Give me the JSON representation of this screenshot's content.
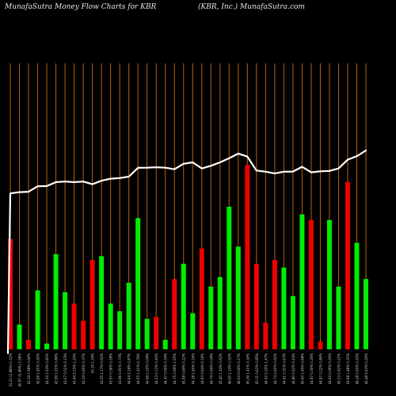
{
  "header": {
    "title_left": "MunafaSutra  Money Flow  Charts for KBR",
    "title_right": "(KBR, Inc.) MunafaSutra.com"
  },
  "colors": {
    "background": "#000000",
    "gridline": "#b8620a",
    "up_bar": "#00ee00",
    "down_bar": "#ee0000",
    "price_line": "#ffffff",
    "label": "#cccccc"
  },
  "chart_data": {
    "type": "bar",
    "title": "MunafaSutra  Money Flow  Charts for KBR",
    "grid": true,
    "bars": [
      {
        "label": "41.22 (2.98%) 0.32%",
        "value": 0.58,
        "direction": "down",
        "price": 0.79
      },
      {
        "label": "40.97 (0.46%) 2.58%",
        "value": 0.13,
        "direction": "up",
        "price": 0.796
      },
      {
        "label": "42.19 2.98% 0.00%",
        "value": 0.05,
        "direction": "down",
        "price": 0.798
      },
      {
        "label": "42.06 1.91% 0.50%",
        "value": 0.31,
        "direction": "up",
        "price": 0.825
      },
      {
        "label": "42.20 2.53% 0.82%",
        "value": 0.03,
        "direction": "up",
        "price": 0.826
      },
      {
        "label": "42.99 1.01% 0.86%",
        "value": 0.5,
        "direction": "up",
        "price": 0.845
      },
      {
        "label": "43.07 0.51% 0.13%",
        "value": 0.3,
        "direction": "up",
        "price": 0.848
      },
      {
        "label": "43.44 0.15% 1.20%",
        "value": 0.24,
        "direction": "down",
        "price": 0.845
      },
      {
        "label": "43.19 0.60% 0.37%",
        "value": 0.15,
        "direction": "down",
        "price": 0.848
      },
      {
        "label": "43.10 1.34%",
        "value": 0.47,
        "direction": "down",
        "price": 0.835
      },
      {
        "label": "43.55 1.17% 0.02%",
        "value": 0.49,
        "direction": "up",
        "price": 0.852
      },
      {
        "label": "43.57 0.36% 0.28%",
        "value": 0.24,
        "direction": "up",
        "price": 0.862
      },
      {
        "label": "43.96 0.91% 0.73%",
        "value": 0.2,
        "direction": "up",
        "price": 0.865
      },
      {
        "label": "44.04 0.18% 0.87%",
        "value": 0.35,
        "direction": "up",
        "price": 0.872
      },
      {
        "label": "44.55 1.41% 0.70%",
        "value": 0.69,
        "direction": "up",
        "price": 0.915
      },
      {
        "label": "44.56 0.10% 0.09%",
        "value": 0.16,
        "direction": "up",
        "price": 0.916
      },
      {
        "label": "44.53 0.13% 0.40%",
        "value": 0.17,
        "direction": "down",
        "price": 0.918
      },
      {
        "label": "44.47 0.00% 0.34%",
        "value": 0.05,
        "direction": "up",
        "price": 0.916
      },
      {
        "label": "44.75 0.69% 1.55%",
        "value": 0.37,
        "direction": "down",
        "price": 0.908
      },
      {
        "label": "45.08 0.84% 0.22%",
        "value": 0.45,
        "direction": "up",
        "price": 0.935
      },
      {
        "label": "44.38 1.60% 0.19%",
        "value": 0.19,
        "direction": "up",
        "price": 0.942
      },
      {
        "label": "44.93 0.64% 0.16%",
        "value": 0.53,
        "direction": "down",
        "price": 0.912
      },
      {
        "label": "44.74 0.64% 0.09%",
        "value": 0.33,
        "direction": "up",
        "price": 0.925
      },
      {
        "label": "45.40 1.44% 0.62%",
        "value": 0.38,
        "direction": "up",
        "price": 0.942
      },
      {
        "label": "46.00 1.33% 0.50%",
        "value": 0.75,
        "direction": "up",
        "price": 0.962
      },
      {
        "label": "46.04 0.09% 0.17%",
        "value": 0.54,
        "direction": "up",
        "price": 0.985
      },
      {
        "label": "45.39 1.41% 0.16%",
        "value": 0.97,
        "direction": "down",
        "price": 0.97
      },
      {
        "label": "45.11 0.62% 0.85%",
        "value": 0.45,
        "direction": "down",
        "price": 0.902
      },
      {
        "label": "44.92 0.20% 1.47%",
        "value": 0.14,
        "direction": "down",
        "price": 0.896
      },
      {
        "label": "44.74 0.40% 0.62%",
        "value": 0.47,
        "direction": "down",
        "price": 0.888
      },
      {
        "label": "44.61 0.51% 0.67%",
        "value": 0.43,
        "direction": "up",
        "price": 0.896
      },
      {
        "label": "44.80 0.42% 0.44%",
        "value": 0.28,
        "direction": "up",
        "price": 0.897
      },
      {
        "label": "45.00 1.45% 0.68%",
        "value": 0.71,
        "direction": "up",
        "price": 0.92
      },
      {
        "label": "44.87 0.30% 0.26%",
        "value": 0.68,
        "direction": "down",
        "price": 0.893
      },
      {
        "label": "44.97 0.22% 0.86%",
        "value": 0.04,
        "direction": "down",
        "price": 0.898
      },
      {
        "label": "44.94 0.06% 0.20%",
        "value": 0.68,
        "direction": "up",
        "price": 0.9
      },
      {
        "label": "45.13 0.42% 0.21%",
        "value": 0.33,
        "direction": "up",
        "price": 0.912
      },
      {
        "label": "45.98 1.88% 0.31%",
        "value": 0.88,
        "direction": "down",
        "price": 0.955
      },
      {
        "label": "46.28 0.65% 0.20%",
        "value": 0.56,
        "direction": "up",
        "price": 0.972
      },
      {
        "label": "46.48 0.43% 0.20%",
        "value": 0.37,
        "direction": "up",
        "price": 1.0
      }
    ],
    "ylim": [
      0,
      1
    ]
  }
}
